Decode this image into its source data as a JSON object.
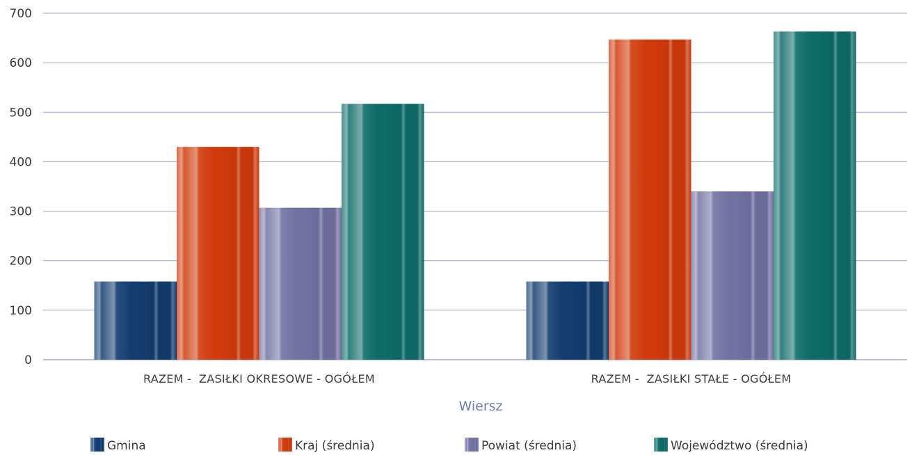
{
  "chart_data": {
    "type": "bar",
    "title": "",
    "xlabel": "Wiersz",
    "ylabel": "",
    "ylim": [
      0,
      700
    ],
    "yticks": [
      0,
      100,
      200,
      300,
      400,
      500,
      600,
      700
    ],
    "grid": true,
    "legend": "bottom",
    "categories": [
      "RAZEM -  ZASIŁKI OKRESOWE - OGÓŁEM",
      "RAZEM -  ZASIŁKI STAŁE - OGÓŁEM"
    ],
    "series": [
      {
        "name": "Gmina",
        "values": [
          158,
          158
        ],
        "color": "#123d6e"
      },
      {
        "name": "Kraj (średnia)",
        "values": [
          430,
          647
        ],
        "color": "#d03a0c"
      },
      {
        "name": "Powiat (średnia)",
        "values": [
          307,
          340
        ],
        "color": "#7272a3"
      },
      {
        "name": "Województwo (średnia)",
        "values": [
          517,
          663
        ],
        "color": "#0d6b68"
      }
    ]
  }
}
